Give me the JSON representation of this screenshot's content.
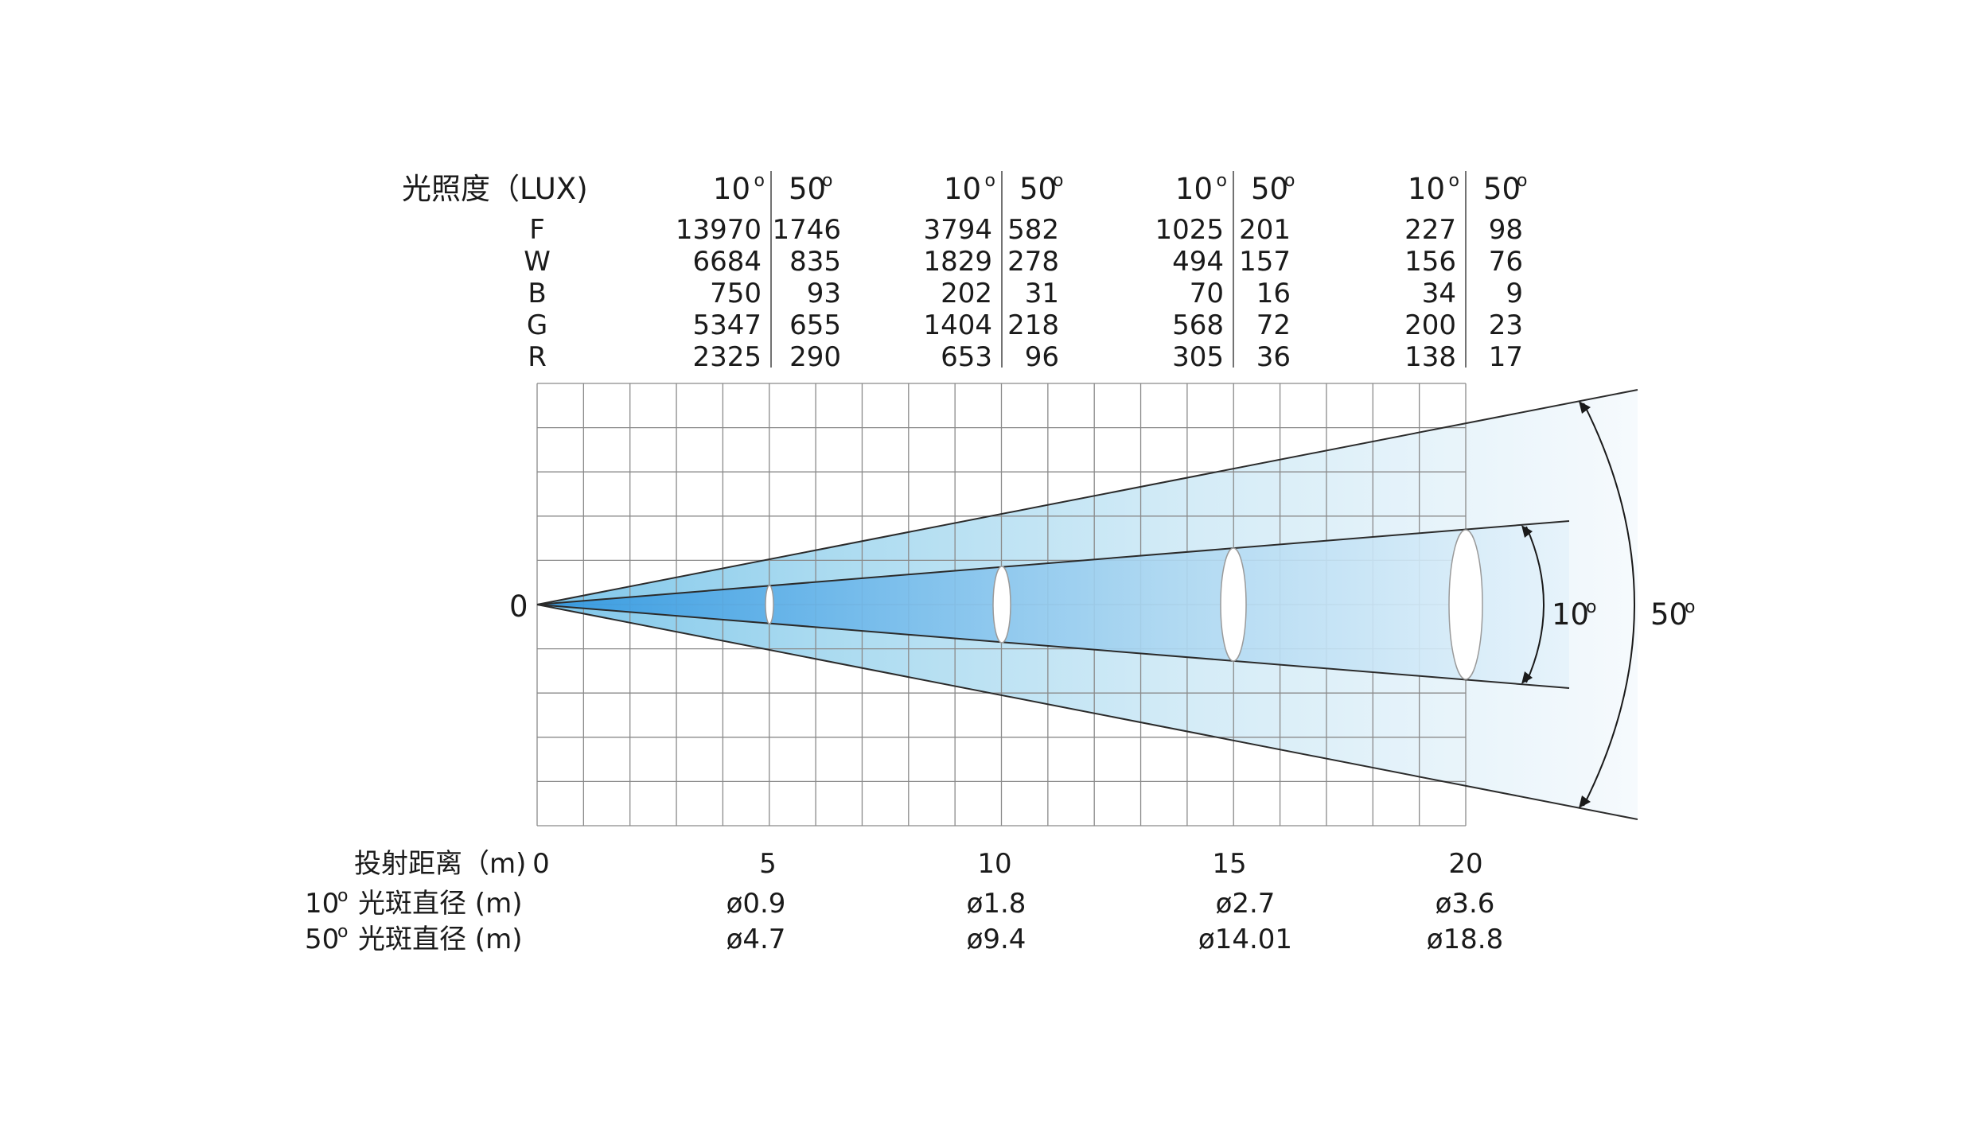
{
  "illuminance": {
    "title": "光照度（LUX)",
    "header_narrow": "10",
    "header_wide": "50",
    "degree_mark": "o",
    "rows": [
      "F",
      "W",
      "B",
      "G",
      "R"
    ],
    "groups": [
      {
        "narrow": [
          "13970",
          "6684",
          "750",
          "5347",
          "2325"
        ],
        "wide": [
          "1746",
          "835",
          "93",
          "655",
          "290"
        ]
      },
      {
        "narrow": [
          "3794",
          "1829",
          "202",
          "1404",
          "653"
        ],
        "wide": [
          "582",
          "278",
          "31",
          "218",
          "96"
        ]
      },
      {
        "narrow": [
          "1025",
          "494",
          "70",
          "568",
          "305"
        ],
        "wide": [
          "201",
          "157",
          "16",
          "72",
          "36"
        ]
      },
      {
        "narrow": [
          "227",
          "156",
          "34",
          "200",
          "138"
        ],
        "wide": [
          "98",
          "76",
          "9",
          "23",
          "17"
        ]
      }
    ]
  },
  "beam": {
    "origin_label": "0",
    "narrow_angle_label": "10",
    "wide_angle_label": "50",
    "degree_mark": "o",
    "colors": {
      "dark": "#3a9ee0",
      "mid": "#9fd6ef",
      "light": "#f4f9fd",
      "line": "#2b2b2b",
      "grid": "#8a8a8a"
    }
  },
  "distance": {
    "label": "投射距离（m)",
    "ticks": [
      "0",
      "5",
      "10",
      "15",
      "20"
    ]
  },
  "spot_narrow": {
    "label_num": "10",
    "label_text": "光斑直径 (m)",
    "values": [
      "ø0.9",
      "ø1.8",
      "ø2.7",
      "ø3.6"
    ]
  },
  "spot_wide": {
    "label_num": "50",
    "label_text": "光斑直径 (m)",
    "values": [
      "ø4.7",
      "ø9.4",
      "ø14.01",
      "ø18.8"
    ]
  }
}
